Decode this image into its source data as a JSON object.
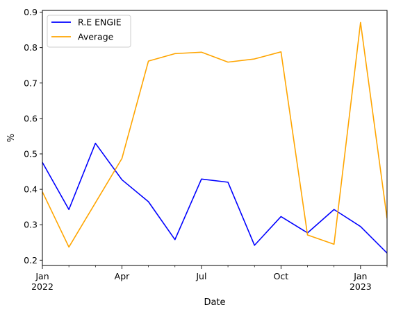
{
  "chart_data": {
    "type": "line",
    "x": [
      "2022-01",
      "2022-02",
      "2022-03",
      "2022-04",
      "2022-05",
      "2022-06",
      "2022-07",
      "2022-08",
      "2022-09",
      "2022-10",
      "2022-11",
      "2022-12",
      "2023-01",
      "2023-02"
    ],
    "series": [
      {
        "name": "R.E ENGIE",
        "color": "#0000ff",
        "values": [
          0.476,
          0.343,
          0.53,
          0.427,
          0.365,
          0.258,
          0.429,
          0.42,
          0.242,
          0.323,
          0.277,
          0.343,
          0.295,
          0.22
        ]
      },
      {
        "name": "Average",
        "color": "#ffa500",
        "values": [
          0.393,
          0.237,
          0.362,
          0.487,
          0.762,
          0.783,
          0.787,
          0.759,
          0.768,
          0.788,
          0.271,
          0.245,
          0.871,
          0.318
        ]
      }
    ],
    "xlabel": "Date",
    "ylabel": "%",
    "ylim": [
      0.185,
      0.905
    ],
    "yticks": [
      0.2,
      0.3,
      0.4,
      0.5,
      0.6,
      0.7,
      0.8,
      0.9
    ],
    "xticks": [
      {
        "month": 0,
        "label": "Jan",
        "sublabel": "2022"
      },
      {
        "month": 3,
        "label": "Apr",
        "sublabel": ""
      },
      {
        "month": 6,
        "label": "Jul",
        "sublabel": ""
      },
      {
        "month": 9,
        "label": "Oct",
        "sublabel": ""
      },
      {
        "month": 12,
        "label": "Jan",
        "sublabel": "2023"
      }
    ],
    "minor_xticks": [
      1,
      2,
      4,
      5,
      7,
      8,
      10,
      11,
      13
    ],
    "grid": false,
    "legend_position": "top-left"
  }
}
